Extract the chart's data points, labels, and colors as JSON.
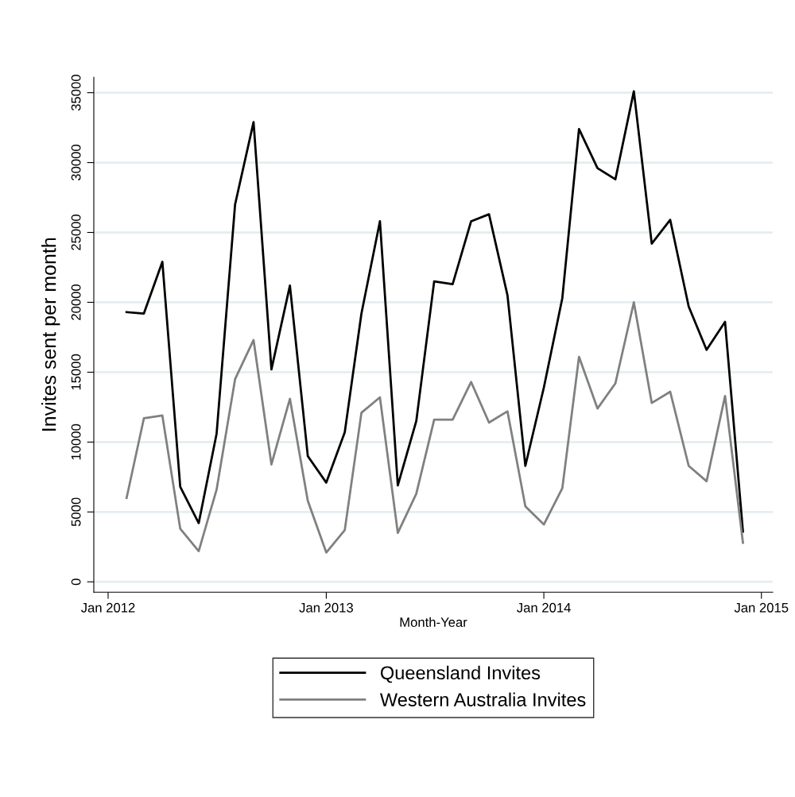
{
  "chart_data": {
    "type": "line",
    "xlabel": "Month-Year",
    "ylabel": "Invites sent per month",
    "x": [
      "2012-02",
      "2012-03",
      "2012-04",
      "2012-05",
      "2012-06",
      "2012-07",
      "2012-08",
      "2012-09",
      "2012-10",
      "2012-11",
      "2012-12",
      "2013-01",
      "2013-02",
      "2013-03",
      "2013-04",
      "2013-05",
      "2013-06",
      "2013-07",
      "2013-08",
      "2013-09",
      "2013-10",
      "2013-11",
      "2013-12",
      "2014-01",
      "2014-02",
      "2014-03",
      "2014-04",
      "2014-05",
      "2014-06",
      "2014-07",
      "2014-08",
      "2014-09",
      "2014-10",
      "2014-11",
      "2014-12"
    ],
    "series": [
      {
        "name": "Queensland Invites",
        "color": "#000000",
        "values": [
          19300,
          19200,
          22900,
          6800,
          4200,
          10600,
          27000,
          32900,
          15200,
          21200,
          9000,
          7100,
          10700,
          19200,
          25800,
          6900,
          11500,
          21500,
          21300,
          25800,
          26300,
          20500,
          8300,
          13900,
          20300,
          32400,
          29600,
          28800,
          35100,
          24200,
          25900,
          19700,
          16600,
          18600,
          3600
        ]
      },
      {
        "name": "Western Australia Invites",
        "color": "#808080",
        "values": [
          6000,
          11700,
          11900,
          3800,
          2200,
          6600,
          14500,
          17300,
          8400,
          13100,
          5800,
          2100,
          3700,
          12100,
          13200,
          3500,
          6300,
          11600,
          11600,
          14300,
          11400,
          12200,
          5400,
          4100,
          6700,
          16100,
          12400,
          14200,
          20000,
          12800,
          13600,
          8300,
          7200,
          13300,
          2800
        ]
      }
    ],
    "xlim": [
      "2011-12-08",
      "2015-01-20"
    ],
    "xticks": [
      {
        "value": "2012-01",
        "label": "Jan 2012"
      },
      {
        "value": "2013-01",
        "label": "Jan 2013"
      },
      {
        "value": "2014-01",
        "label": "Jan 2014"
      },
      {
        "value": "2015-01",
        "label": "Jan 2015"
      }
    ],
    "ylim": [
      -740,
      36100
    ],
    "yticks": [
      0,
      5000,
      10000,
      15000,
      20000,
      25000,
      30000,
      35000
    ],
    "grid": "y",
    "legend": "bottom",
    "marker": "none",
    "line_style": "solid"
  }
}
